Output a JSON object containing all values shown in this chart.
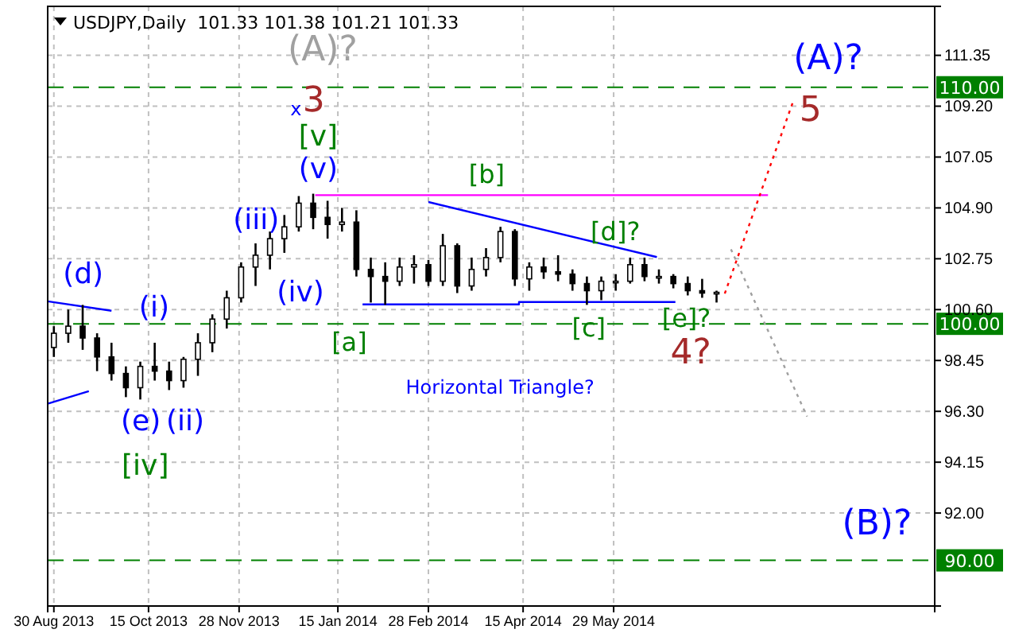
{
  "chart_data": {
    "type": "candlestick",
    "title": "USDJPY,Daily  101.33 101.38 101.21 101.33",
    "color": "#000000",
    "x": [
      "2013-08-30",
      "2013-09-06",
      "2013-09-13",
      "2013-09-20",
      "2013-09-27",
      "2013-10-04",
      "2013-10-11",
      "2013-10-18",
      "2013-10-25",
      "2013-11-01",
      "2013-11-08",
      "2013-11-15",
      "2013-11-22",
      "2013-11-29",
      "2013-12-06",
      "2013-12-13",
      "2013-12-20",
      "2013-12-27",
      "2014-01-03",
      "2014-01-10",
      "2014-01-17",
      "2014-01-24",
      "2014-01-31",
      "2014-02-07",
      "2014-02-14",
      "2014-02-21",
      "2014-02-28",
      "2014-03-07",
      "2014-03-14",
      "2014-03-21",
      "2014-03-28",
      "2014-04-04",
      "2014-04-11",
      "2014-04-18",
      "2014-04-25",
      "2014-05-02",
      "2014-05-09",
      "2014-05-16",
      "2014-05-23",
      "2014-05-30",
      "2014-06-06",
      "2014-06-13",
      "2014-06-20",
      "2014-06-27",
      "2014-07-04",
      "2014-07-11",
      "2014-07-18"
    ],
    "ohlc": [
      [
        99.0,
        99.9,
        98.6,
        99.6
      ],
      [
        99.6,
        100.6,
        99.2,
        99.9
      ],
      [
        99.9,
        100.8,
        98.9,
        99.4
      ],
      [
        99.4,
        99.6,
        98.0,
        98.6
      ],
      [
        98.6,
        99.2,
        97.6,
        97.9
      ],
      [
        97.9,
        98.2,
        96.9,
        97.3
      ],
      [
        97.3,
        98.4,
        96.8,
        98.2
      ],
      [
        98.2,
        99.2,
        97.6,
        98.0
      ],
      [
        98.0,
        98.4,
        97.2,
        97.6
      ],
      [
        97.6,
        98.6,
        97.3,
        98.5
      ],
      [
        98.5,
        99.6,
        97.8,
        99.2
      ],
      [
        99.2,
        100.4,
        98.8,
        100.2
      ],
      [
        100.2,
        101.4,
        99.8,
        101.1
      ],
      [
        101.1,
        102.6,
        100.9,
        102.4
      ],
      [
        102.4,
        103.4,
        101.6,
        102.9
      ],
      [
        102.9,
        103.9,
        102.3,
        103.6
      ],
      [
        103.6,
        104.6,
        103.0,
        104.1
      ],
      [
        104.1,
        105.4,
        103.9,
        105.1
      ],
      [
        105.1,
        105.5,
        104.0,
        104.5
      ],
      [
        104.5,
        105.2,
        103.6,
        104.2
      ],
      [
        104.2,
        104.9,
        103.9,
        104.3
      ],
      [
        104.3,
        104.8,
        102.0,
        102.3
      ],
      [
        102.3,
        102.8,
        100.9,
        102.0
      ],
      [
        102.0,
        102.6,
        100.8,
        101.8
      ],
      [
        101.8,
        102.8,
        101.6,
        102.4
      ],
      [
        102.4,
        102.9,
        101.7,
        102.5
      ],
      [
        102.5,
        102.7,
        101.6,
        101.8
      ],
      [
        101.8,
        103.8,
        101.6,
        103.3
      ],
      [
        103.3,
        103.4,
        101.3,
        101.6
      ],
      [
        101.6,
        102.8,
        101.4,
        102.3
      ],
      [
        102.3,
        103.2,
        102.0,
        102.8
      ],
      [
        102.8,
        104.1,
        102.6,
        103.9
      ],
      [
        103.9,
        104.0,
        101.6,
        101.9
      ],
      [
        101.9,
        102.6,
        101.4,
        102.4
      ],
      [
        102.4,
        102.8,
        101.9,
        102.2
      ],
      [
        102.2,
        102.9,
        101.8,
        102.1
      ],
      [
        102.1,
        102.3,
        101.4,
        101.7
      ],
      [
        101.7,
        102.0,
        100.8,
        101.4
      ],
      [
        101.4,
        102.0,
        101.0,
        101.8
      ],
      [
        101.8,
        102.1,
        101.4,
        101.8
      ],
      [
        101.8,
        102.8,
        101.7,
        102.5
      ],
      [
        102.5,
        102.8,
        101.8,
        102.0
      ],
      [
        102.0,
        102.3,
        101.7,
        102.0
      ],
      [
        102.0,
        102.1,
        101.5,
        101.7
      ],
      [
        101.7,
        102.0,
        101.2,
        101.4
      ],
      [
        101.4,
        101.9,
        101.1,
        101.3
      ],
      [
        101.3,
        101.4,
        100.9,
        101.33
      ]
    ],
    "series": [
      {
        "type": "line",
        "color": "#ff00ff",
        "line_style": "solid",
        "x": [
          "2014-01-04",
          "2014-08-12"
        ],
        "values": [
          105.44,
          105.44
        ]
      },
      {
        "type": "line",
        "color": "#0000ff",
        "line_style": "solid",
        "x": [
          "2014-02-28",
          "2014-06-19"
        ],
        "values": [
          105.15,
          102.82
        ]
      },
      {
        "type": "line",
        "color": "#0000ff",
        "line_style": "solid",
        "x": [
          "2014-01-27",
          "2014-04-13",
          "2014-04-13",
          "2014-06-28"
        ],
        "values": [
          100.82,
          100.82,
          100.92,
          100.92
        ]
      },
      {
        "type": "line",
        "color": "#0000ff",
        "line_style": "solid",
        "x": [
          "2013-08-27",
          "2013-09-27"
        ],
        "values": [
          100.95,
          100.55
        ]
      },
      {
        "type": "line",
        "color": "#0000ff",
        "line_style": "solid",
        "x": [
          "2013-08-27",
          "2013-09-16"
        ],
        "values": [
          96.62,
          97.15
        ]
      },
      {
        "type": "line",
        "color": "#ff0000",
        "line_style": "dotted",
        "x": [
          "2014-07-22",
          "2014-08-24"
        ],
        "values": [
          101.28,
          109.35
        ]
      },
      {
        "type": "line",
        "color": "#a0a0a0",
        "line_style": "dotted",
        "x": [
          "2014-07-25",
          "2014-08-31"
        ],
        "values": [
          103.15,
          96.08
        ]
      }
    ],
    "ref_lines": [
      {
        "axis": "y",
        "value": 110,
        "label": "110.00",
        "color": "#008000",
        "line_style": "dashed"
      },
      {
        "axis": "y",
        "value": 100,
        "label": "100.00",
        "color": "#008000",
        "line_style": "dashed"
      },
      {
        "axis": "y",
        "value": 90,
        "label": "90.00",
        "color": "#008000",
        "line_style": "dashed"
      }
    ],
    "annotations": [
      "(A)?",
      "3",
      "x",
      "[v]",
      "(v)",
      "(iii)",
      "(iv)",
      "(d)",
      "(i)",
      "(e)",
      "(ii)",
      "[iv]",
      "[a]",
      "[b]",
      "[c]",
      "[d]?",
      "[e]?",
      "4?",
      "(A)?",
      "5",
      "(B)?",
      "Horizontal Triangle?"
    ],
    "xlim": [
      "2013-08-27",
      "2014-11-01"
    ],
    "xticks": [
      {
        "value": "2013-08-30",
        "label": "30 Aug 2013"
      },
      {
        "value": "2013-10-15",
        "label": "15 Oct 2013"
      },
      {
        "value": "2013-11-28",
        "label": "28 Nov 2013"
      },
      {
        "value": "2014-01-15",
        "label": "15 Jan 2014"
      },
      {
        "value": "2014-02-28",
        "label": "28 Feb 2014"
      },
      {
        "value": "2014-04-15",
        "label": "15 Apr 2014"
      },
      {
        "value": "2014-05-29",
        "label": "29 May 2014"
      }
    ],
    "ylim": [
      88.07,
      113.42
    ],
    "yticks": [
      {
        "value": 111.35,
        "label": "111.35"
      },
      {
        "value": 109.2,
        "label": "109.20"
      },
      {
        "value": 107.05,
        "label": "107.05"
      },
      {
        "value": 104.9,
        "label": "104.90"
      },
      {
        "value": 102.75,
        "label": "102.75"
      },
      {
        "value": 100.6,
        "label": "100.60"
      },
      {
        "value": 98.45,
        "label": "98.45"
      },
      {
        "value": 96.3,
        "label": "96.30"
      },
      {
        "value": 94.15,
        "label": "94.15"
      },
      {
        "value": 92.0,
        "label": "92.00"
      }
    ],
    "grid": true
  }
}
